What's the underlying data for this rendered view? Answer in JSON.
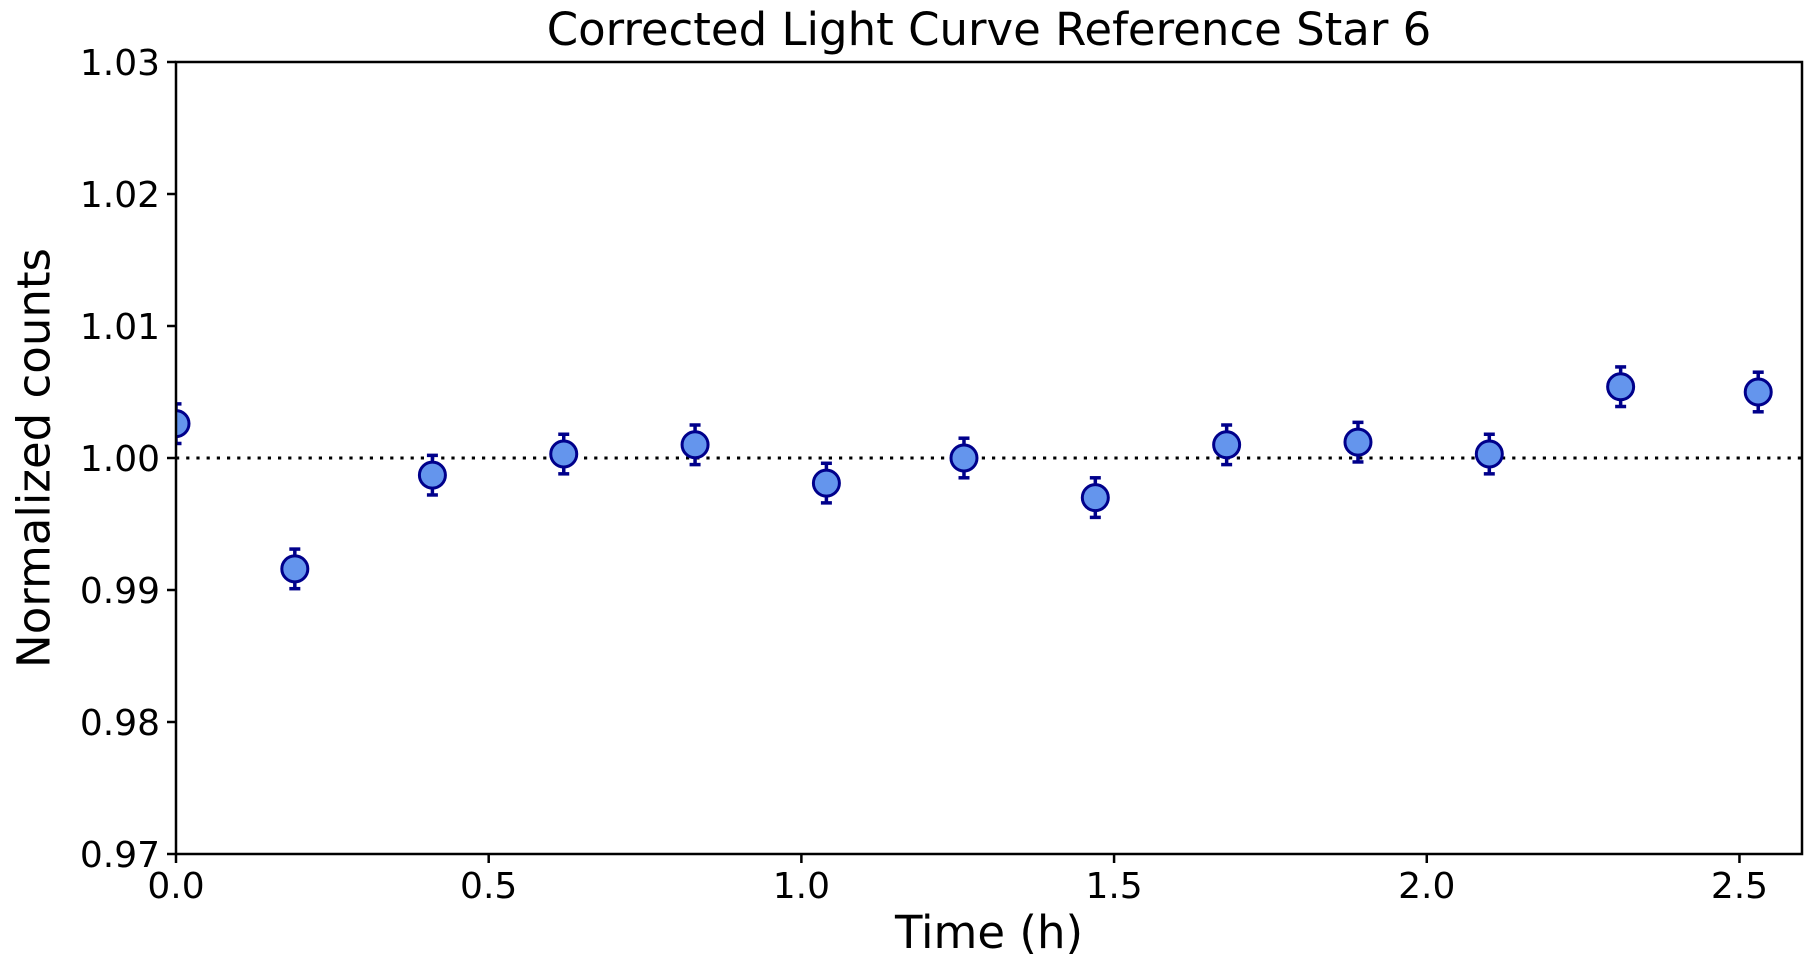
{
  "chart_data": {
    "type": "scatter",
    "title": "Corrected Light Curve Reference Star 6",
    "xlabel": "Time (h)",
    "ylabel": "Normalized counts",
    "x": [
      0.0,
      0.19,
      0.41,
      0.62,
      0.83,
      1.04,
      1.26,
      1.47,
      1.68,
      1.89,
      2.1,
      2.31,
      2.53
    ],
    "y": [
      1.0026,
      0.9916,
      0.9987,
      1.0003,
      1.001,
      0.9981,
      1.0,
      0.997,
      1.001,
      1.0012,
      1.0003,
      1.0054,
      1.005
    ],
    "yerr": [
      0.0015,
      0.0015,
      0.0015,
      0.0015,
      0.0015,
      0.0015,
      0.0015,
      0.0015,
      0.0015,
      0.0015,
      0.0015,
      0.0015,
      0.0015
    ],
    "xlim": [
      0.0,
      2.6
    ],
    "ylim": [
      0.97,
      1.03
    ],
    "xticks": [
      0.0,
      0.5,
      1.0,
      1.5,
      2.0,
      2.5
    ],
    "xtick_labels": [
      "0.0",
      "0.5",
      "1.0",
      "1.5",
      "2.0",
      "2.5"
    ],
    "yticks": [
      0.97,
      0.98,
      0.99,
      1.0,
      1.01,
      1.02,
      1.03
    ],
    "ytick_labels": [
      "0.97",
      "0.98",
      "0.99",
      "1.00",
      "1.01",
      "1.02",
      "1.03"
    ],
    "reference_line": {
      "y": 1.0,
      "style": "dotted",
      "color": "#000000"
    },
    "grid": false,
    "legend": false,
    "marker": {
      "shape": "circle",
      "fill": "#6495ED",
      "edge": "#00008B",
      "errorbar_color": "#00008B"
    },
    "axis_color": "#000000",
    "background_color": "#ffffff"
  }
}
